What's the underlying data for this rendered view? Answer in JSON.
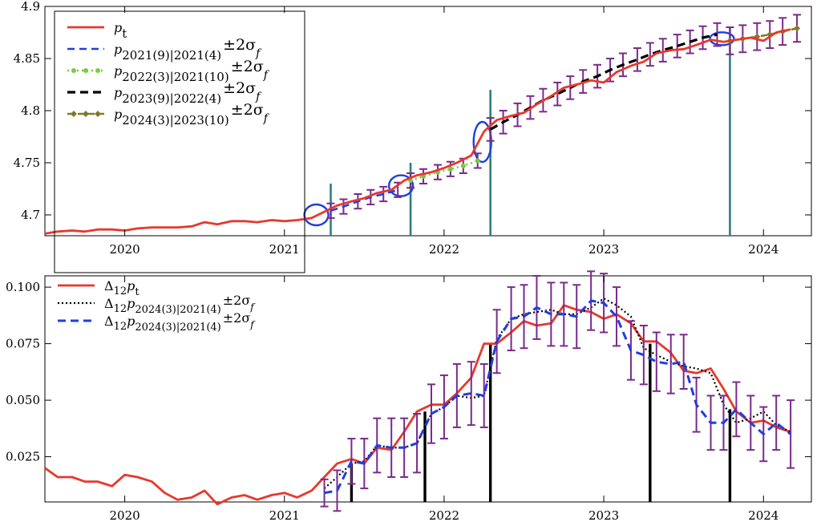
{
  "colors": {
    "actual": "#e8382c",
    "blue": "#1f3fe0",
    "green": "#7ac943",
    "black": "#000000",
    "olive": "#807a2a",
    "errorbar": "#7a2a8c",
    "teal": "#2f7f7c",
    "ellipse": "#1f3fe0"
  },
  "chart_data": [
    {
      "type": "line",
      "panel": "top",
      "xlim": [
        2019.5,
        2024.3
      ],
      "ylim": [
        4.68,
        4.9
      ],
      "x_ticks": [
        2020,
        2021,
        2022,
        2023,
        2024
      ],
      "x_tick_labels": [
        "2020",
        "2021",
        "2022",
        "2023",
        "2024"
      ],
      "y_ticks": [
        4.7,
        4.75,
        4.8,
        4.85,
        4.9
      ],
      "y_tick_labels": [
        "4.7",
        "4.75",
        "4.8",
        "4.85",
        "4.9"
      ],
      "legend": {
        "entries": [
          {
            "main": "p",
            "sub": "t",
            "extra": ""
          },
          {
            "main": "p",
            "sub": "2021(9)|2021(4)",
            "extra": "±2σ"
          },
          {
            "main": "p",
            "sub": "2022(3)|2021(10)",
            "extra": "±2σ"
          },
          {
            "main": "p",
            "sub": "2023(9)|2022(4)",
            "extra": "±2σ"
          },
          {
            "main": "p",
            "sub": "2024(3)|2023(10)",
            "extra": "±2σ"
          }
        ],
        "sigma_sub": "f"
      },
      "vlines": [
        2021.29,
        2021.79,
        2022.29,
        2023.79
      ],
      "ellipses": [
        {
          "x": 2021.2,
          "y": 4.7
        },
        {
          "x": 2021.73,
          "y": 4.728
        },
        {
          "x": 2022.24,
          "y": 4.77
        },
        {
          "x": 2023.74,
          "y": 4.869
        }
      ],
      "series": [
        {
          "style": "actual",
          "x": [
            2019.5,
            2019.58,
            2019.67,
            2019.75,
            2019.83,
            2019.92,
            2020.0,
            2020.08,
            2020.17,
            2020.25,
            2020.33,
            2020.42,
            2020.5,
            2020.58,
            2020.67,
            2020.75,
            2020.83,
            2020.92,
            2021.0,
            2021.08,
            2021.17,
            2021.25,
            2021.33,
            2021.42,
            2021.5,
            2021.58,
            2021.67,
            2021.75,
            2021.83,
            2021.92,
            2022.0,
            2022.08,
            2022.17,
            2022.25,
            2022.33,
            2022.42,
            2022.5,
            2022.58,
            2022.67,
            2022.75,
            2022.83,
            2022.92,
            2023.0,
            2023.08,
            2023.17,
            2023.25,
            2023.33,
            2023.42,
            2023.5,
            2023.58,
            2023.67,
            2023.75,
            2023.83,
            2023.92,
            2024.0,
            2024.08,
            2024.17
          ],
          "y": [
            4.682,
            4.684,
            4.685,
            4.684,
            4.686,
            4.686,
            4.685,
            4.687,
            4.688,
            4.688,
            4.688,
            4.689,
            4.693,
            4.691,
            4.694,
            4.694,
            4.693,
            4.695,
            4.694,
            4.695,
            4.697,
            4.703,
            4.709,
            4.713,
            4.716,
            4.721,
            4.724,
            4.733,
            4.738,
            4.741,
            4.745,
            4.75,
            4.757,
            4.78,
            4.791,
            4.795,
            4.798,
            4.806,
            4.814,
            4.822,
            4.825,
            4.829,
            4.827,
            4.837,
            4.843,
            4.847,
            4.855,
            4.858,
            4.859,
            4.863,
            4.868,
            4.866,
            4.868,
            4.87,
            4.867,
            4.875,
            4.878
          ]
        },
        {
          "style": "blue",
          "errorbars": true,
          "err": 0.007,
          "x": [
            2021.29,
            2021.37,
            2021.46,
            2021.54,
            2021.62,
            2021.71
          ],
          "y": [
            4.704,
            4.708,
            4.713,
            4.717,
            4.72,
            4.724
          ]
        },
        {
          "style": "green",
          "errorbars": true,
          "err": 0.007,
          "x": [
            2021.79,
            2021.87,
            2021.96,
            2022.04,
            2022.12,
            2022.21
          ],
          "y": [
            4.733,
            4.737,
            4.741,
            4.744,
            4.747,
            4.752
          ]
        },
        {
          "style": "black",
          "errorbars": true,
          "err": 0.011,
          "x": [
            2022.29,
            2022.37,
            2022.46,
            2022.54,
            2022.62,
            2022.71,
            2022.79,
            2022.87,
            2022.96,
            2023.04,
            2023.12,
            2023.21,
            2023.29,
            2023.37,
            2023.46,
            2023.54,
            2023.62,
            2023.71
          ],
          "y": [
            4.782,
            4.789,
            4.796,
            4.803,
            4.81,
            4.816,
            4.822,
            4.828,
            4.833,
            4.839,
            4.844,
            4.849,
            4.854,
            4.858,
            4.862,
            4.866,
            4.87,
            4.873
          ]
        },
        {
          "style": "olive",
          "errorbars": true,
          "err": 0.013,
          "x": [
            2023.79,
            2023.87,
            2023.96,
            2024.04,
            2024.12,
            2024.21
          ],
          "y": [
            4.867,
            4.869,
            4.871,
            4.873,
            4.876,
            4.879
          ]
        }
      ]
    },
    {
      "type": "line",
      "panel": "bottom",
      "xlim": [
        2019.5,
        2024.3
      ],
      "ylim": [
        0.005,
        0.105
      ],
      "x_ticks": [
        2020,
        2021,
        2022,
        2023,
        2024
      ],
      "x_tick_labels": [
        "2020",
        "2021",
        "2022",
        "2023",
        "2024"
      ],
      "y_ticks": [
        0.025,
        0.05,
        0.075,
        0.1
      ],
      "y_tick_labels": [
        "0.025",
        "0.050",
        "0.075",
        "0.100"
      ],
      "legend": {
        "entries": [
          {
            "main": "Δ",
            "mainsub": "12",
            "p": "p",
            "sub": "t",
            "extra": ""
          },
          {
            "main": "Δ",
            "mainsub": "12",
            "p": "p",
            "sub": "2024(3)|2021(4)",
            "extra": "±2σ"
          },
          {
            "main": "Δ",
            "mainsub": "12",
            "p": "p",
            "sub": "2024(3)|2021(4)",
            "extra": "±2σ"
          }
        ],
        "sigma_sub": "f"
      },
      "vlines": [
        {
          "x": 2021.42,
          "top": 0.022
        },
        {
          "x": 2021.88,
          "top": 0.045
        },
        {
          "x": 2022.29,
          "top": 0.075
        },
        {
          "x": 2023.29,
          "top": 0.075
        },
        {
          "x": 2023.79,
          "top": 0.046
        }
      ],
      "series": [
        {
          "style": "actual",
          "x": [
            2019.5,
            2019.58,
            2019.67,
            2019.75,
            2019.83,
            2019.92,
            2020.0,
            2020.08,
            2020.17,
            2020.25,
            2020.33,
            2020.42,
            2020.5,
            2020.58,
            2020.67,
            2020.75,
            2020.83,
            2020.92,
            2021.0,
            2021.08,
            2021.17,
            2021.25,
            2021.33,
            2021.42,
            2021.5,
            2021.58,
            2021.67,
            2021.75,
            2021.83,
            2021.92,
            2022.0,
            2022.08,
            2022.17,
            2022.25,
            2022.33,
            2022.42,
            2022.5,
            2022.58,
            2022.67,
            2022.75,
            2022.83,
            2022.92,
            2023.0,
            2023.08,
            2023.17,
            2023.25,
            2023.33,
            2023.42,
            2023.5,
            2023.58,
            2023.67,
            2023.75,
            2023.83,
            2023.92,
            2024.0,
            2024.08,
            2024.17
          ],
          "y": [
            0.02,
            0.016,
            0.016,
            0.014,
            0.014,
            0.012,
            0.017,
            0.016,
            0.014,
            0.009,
            0.006,
            0.007,
            0.01,
            0.004,
            0.007,
            0.008,
            0.006,
            0.008,
            0.009,
            0.007,
            0.01,
            0.016,
            0.022,
            0.024,
            0.022,
            0.029,
            0.028,
            0.036,
            0.045,
            0.048,
            0.048,
            0.053,
            0.06,
            0.075,
            0.075,
            0.08,
            0.085,
            0.083,
            0.084,
            0.092,
            0.09,
            0.089,
            0.086,
            0.088,
            0.084,
            0.076,
            0.076,
            0.071,
            0.063,
            0.062,
            0.064,
            0.055,
            0.045,
            0.04,
            0.041,
            0.038,
            0.036
          ]
        },
        {
          "style": "black-dotted",
          "x": [
            2021.25,
            2021.33,
            2021.42,
            2021.5,
            2021.58,
            2021.67,
            2021.75,
            2021.83,
            2021.92,
            2022.0,
            2022.08,
            2022.17,
            2022.25,
            2022.33,
            2022.42,
            2022.5,
            2022.58,
            2022.67,
            2022.75,
            2022.83,
            2022.92,
            2023.0,
            2023.08,
            2023.17,
            2023.25,
            2023.33,
            2023.42,
            2023.5,
            2023.58,
            2023.67,
            2023.75,
            2023.83,
            2023.92,
            2024.0,
            2024.08,
            2024.17
          ],
          "y": [
            0.011,
            0.016,
            0.022,
            0.023,
            0.03,
            0.029,
            0.029,
            0.031,
            0.044,
            0.047,
            0.052,
            0.051,
            0.052,
            0.077,
            0.086,
            0.088,
            0.089,
            0.09,
            0.088,
            0.088,
            0.091,
            0.095,
            0.092,
            0.087,
            0.073,
            0.07,
            0.067,
            0.065,
            0.064,
            0.062,
            0.048,
            0.04,
            0.042,
            0.045,
            0.039,
            0.036
          ]
        },
        {
          "style": "blue-dashed",
          "errorbars": true,
          "x": [
            2021.25,
            2021.33,
            2021.42,
            2021.5,
            2021.58,
            2021.67,
            2021.75,
            2021.83,
            2021.92,
            2022.0,
            2022.08,
            2022.17,
            2022.25,
            2022.33,
            2022.42,
            2022.5,
            2022.58,
            2022.67,
            2022.75,
            2022.83,
            2022.92,
            2023.0,
            2023.08,
            2023.17,
            2023.25,
            2023.33,
            2023.42,
            2023.5,
            2023.58,
            2023.67,
            2023.75,
            2023.83,
            2023.92,
            2024.0,
            2024.08,
            2024.17
          ],
          "y": [
            0.009,
            0.01,
            0.023,
            0.022,
            0.03,
            0.029,
            0.029,
            0.031,
            0.044,
            0.047,
            0.052,
            0.053,
            0.052,
            0.076,
            0.086,
            0.087,
            0.091,
            0.088,
            0.088,
            0.087,
            0.094,
            0.093,
            0.087,
            0.072,
            0.07,
            0.067,
            0.066,
            0.067,
            0.048,
            0.04,
            0.04,
            0.046,
            0.04,
            0.035,
            0.04,
            0.035
          ],
          "err": [
            0.006,
            0.009,
            0.01,
            0.011,
            0.012,
            0.013,
            0.013,
            0.013,
            0.013,
            0.014,
            0.014,
            0.014,
            0.014,
            0.014,
            0.014,
            0.014,
            0.014,
            0.014,
            0.014,
            0.014,
            0.013,
            0.013,
            0.013,
            0.013,
            0.013,
            0.013,
            0.013,
            0.012,
            0.012,
            0.012,
            0.012,
            0.012,
            0.012,
            0.012,
            0.012,
            0.015
          ]
        }
      ]
    }
  ]
}
